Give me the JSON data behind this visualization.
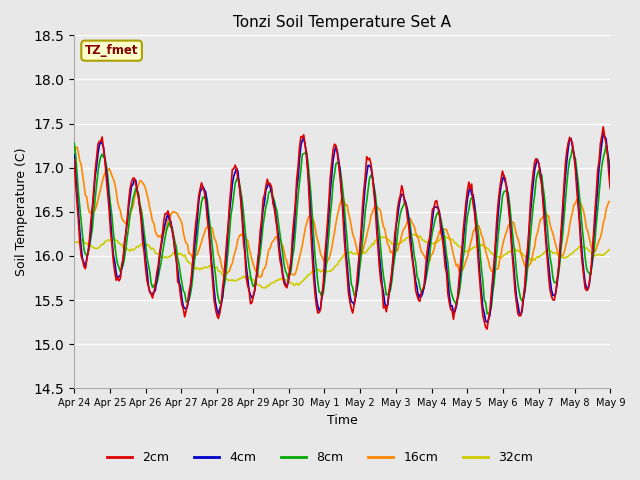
{
  "title": "Tonzi Soil Temperature Set A",
  "xlabel": "Time",
  "ylabel": "Soil Temperature (C)",
  "ylim": [
    14.5,
    18.5
  ],
  "fig_bg_color": "#e8e8e8",
  "plot_bg_color": "#e8e8e8",
  "legend_label": "TZ_fmet",
  "series_colors": {
    "2cm": "#dd0000",
    "4cm": "#0000cc",
    "8cm": "#00aa00",
    "16cm": "#ff8800",
    "32cm": "#cccc00"
  },
  "x_tick_labels": [
    "Apr 24",
    "Apr 25",
    "Apr 26",
    "Apr 27",
    "Apr 28",
    "Apr 29",
    "Apr 30",
    "May 1",
    "May 2",
    "May 3",
    "May 4",
    "May 5",
    "May 6",
    "May 7",
    "May 8",
    "May 9"
  ],
  "yticks": [
    14.5,
    15.0,
    15.5,
    16.0,
    16.5,
    17.0,
    17.5,
    18.0,
    18.5
  ],
  "linewidth": 1.2
}
